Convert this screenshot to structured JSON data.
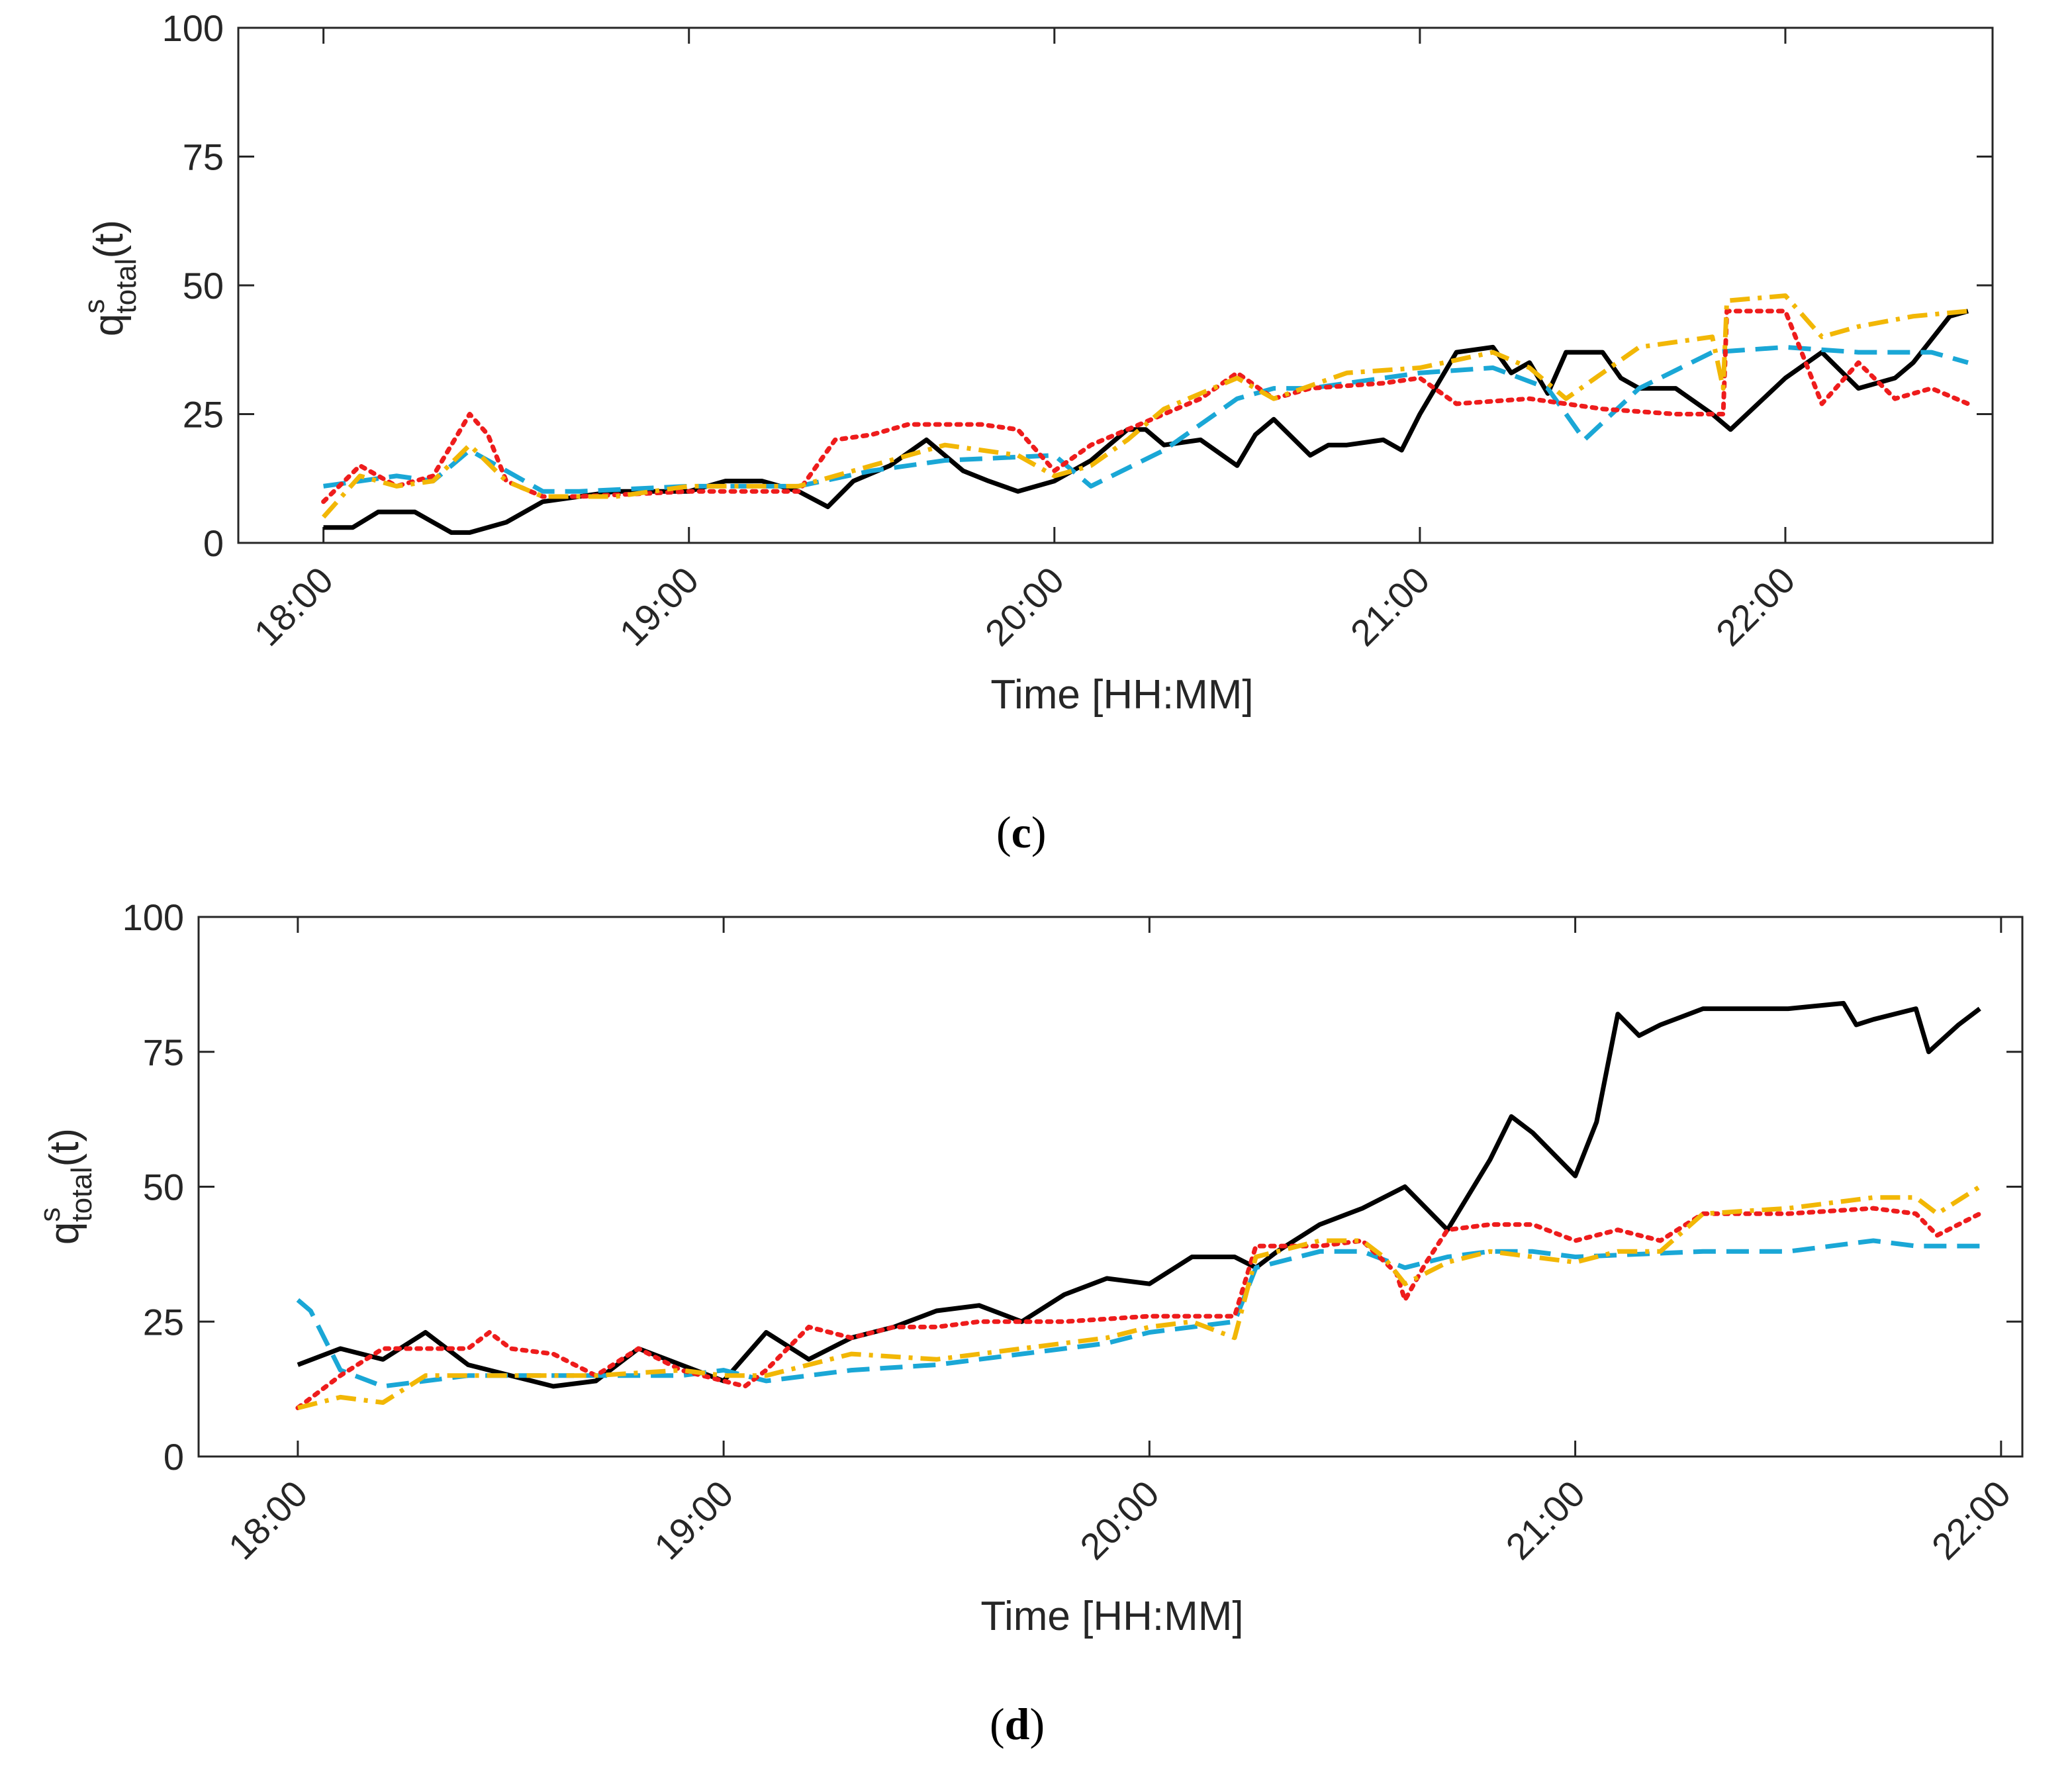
{
  "panels": [
    {
      "label_open": "(",
      "label_letter": "c",
      "label_close": ")"
    },
    {
      "label_open": "(",
      "label_letter": "d",
      "label_close": ")"
    }
  ],
  "colors": {
    "series_1": "#000000",
    "series_2": "#1aa7d6",
    "series_3": "#ee1c1c",
    "series_4": "#f2b705",
    "axis": "#262626"
  },
  "chart_data": [
    {
      "type": "line",
      "panel": "c",
      "xlabel": "Time [HH:MM]",
      "ylabel_base": "q",
      "ylabel_sup": "s",
      "ylabel_sub": "total",
      "ylabel_tail": "(t)",
      "ylim": [
        0,
        100
      ],
      "yticks": [
        0,
        25,
        50,
        75,
        100
      ],
      "xlim": [
        17.767,
        22.567
      ],
      "xticks": [
        18,
        19,
        20,
        21,
        22
      ],
      "xtick_labels": [
        "18:00",
        "19:00",
        "20:00",
        "21:00",
        "22:00"
      ],
      "grid": false,
      "series": [
        {
          "name": "solid black",
          "style": "solid",
          "color": "#000000",
          "x": [
            18.0,
            18.08,
            18.15,
            18.25,
            18.3,
            18.35,
            18.4,
            18.5,
            18.6,
            18.7,
            18.8,
            18.9,
            19.0,
            19.1,
            19.2,
            19.3,
            19.38,
            19.45,
            19.55,
            19.65,
            19.75,
            19.82,
            19.9,
            20.0,
            20.1,
            20.2,
            20.25,
            20.3,
            20.4,
            20.5,
            20.55,
            20.6,
            20.7,
            20.75,
            20.8,
            20.9,
            20.95,
            21.0,
            21.1,
            21.2,
            21.25,
            21.3,
            21.35,
            21.4,
            21.5,
            21.55,
            21.6,
            21.7,
            21.8,
            21.85,
            22.0,
            22.1,
            22.2,
            22.3,
            22.35,
            22.45,
            22.5
          ],
          "y": [
            3,
            3,
            6,
            6,
            4,
            2,
            2,
            4,
            8,
            9,
            10,
            10,
            10,
            12,
            12,
            10,
            7,
            12,
            15,
            20,
            14,
            12,
            10,
            12,
            16,
            22,
            22,
            19,
            20,
            15,
            21,
            24,
            17,
            19,
            19,
            20,
            18,
            25,
            37,
            38,
            33,
            35,
            29,
            37,
            37,
            32,
            30,
            30,
            25,
            22,
            32,
            37,
            30,
            32,
            35,
            44,
            45
          ]
        },
        {
          "name": "dashed cyan",
          "style": "dashed",
          "color": "#1aa7d6",
          "x": [
            18.0,
            18.1,
            18.2,
            18.3,
            18.4,
            18.5,
            18.6,
            18.7,
            19.0,
            19.3,
            19.5,
            19.7,
            20.0,
            20.1,
            20.3,
            20.5,
            20.6,
            20.7,
            20.9,
            21.0,
            21.2,
            21.35,
            21.45,
            21.6,
            21.8,
            22.0,
            22.2,
            22.4,
            22.5
          ],
          "y": [
            11,
            12,
            13,
            12,
            18,
            14,
            10,
            10,
            11,
            11,
            14,
            16,
            17,
            11,
            18,
            28,
            30,
            30,
            32,
            33,
            34,
            30,
            20,
            30,
            37,
            38,
            37,
            37,
            35
          ]
        },
        {
          "name": "dotted red",
          "style": "dotted",
          "color": "#ee1c1c",
          "x": [
            18.0,
            18.1,
            18.2,
            18.3,
            18.4,
            18.45,
            18.5,
            18.6,
            18.7,
            19.0,
            19.3,
            19.4,
            19.5,
            19.6,
            19.7,
            19.8,
            19.9,
            20.0,
            20.1,
            20.2,
            20.3,
            20.4,
            20.5,
            20.6,
            20.7,
            20.9,
            21.0,
            21.1,
            21.3,
            21.5,
            21.7,
            21.83,
            21.84,
            22.0,
            22.1,
            22.2,
            22.3,
            22.4,
            22.5
          ],
          "y": [
            8,
            15,
            11,
            13,
            25,
            21,
            12,
            9,
            9,
            10,
            10,
            20,
            21,
            23,
            23,
            23,
            22,
            14,
            19,
            22,
            25,
            28,
            33,
            28,
            30,
            31,
            32,
            27,
            28,
            26,
            25,
            25,
            45,
            45,
            27,
            35,
            28,
            30,
            27
          ]
        },
        {
          "name": "dash-dot yellow",
          "style": "dashdot",
          "color": "#f2b705",
          "x": [
            18.0,
            18.1,
            18.2,
            18.3,
            18.4,
            18.5,
            18.6,
            18.8,
            19.0,
            19.3,
            19.5,
            19.7,
            19.9,
            20.0,
            20.1,
            20.2,
            20.3,
            20.5,
            20.6,
            20.8,
            21.0,
            21.2,
            21.3,
            21.4,
            21.5,
            21.6,
            21.8,
            21.83,
            21.84,
            22.0,
            22.1,
            22.2,
            22.35,
            22.5
          ],
          "y": [
            5,
            13,
            11,
            12,
            19,
            12,
            9,
            9,
            11,
            11,
            15,
            19,
            17,
            13,
            15,
            20,
            26,
            32,
            28,
            33,
            34,
            37,
            34,
            28,
            33,
            38,
            40,
            30,
            47,
            48,
            40,
            42,
            44,
            45
          ]
        }
      ]
    },
    {
      "type": "line",
      "panel": "d",
      "xlabel": "Time [HH:MM]",
      "ylabel_base": "q",
      "ylabel_sup": "s",
      "ylabel_sub": "total",
      "ylabel_tail": "(t)",
      "ylim": [
        0,
        100
      ],
      "yticks": [
        0,
        25,
        50,
        75,
        100
      ],
      "xlim": [
        17.767,
        22.05
      ],
      "xticks": [
        18,
        19,
        20,
        21,
        22
      ],
      "xtick_labels": [
        "18:00",
        "19:00",
        "20:00",
        "21:00",
        "22:00"
      ],
      "grid": false,
      "series": [
        {
          "name": "solid black",
          "style": "solid",
          "color": "#000000",
          "x": [
            18.0,
            18.1,
            18.2,
            18.3,
            18.4,
            18.5,
            18.6,
            18.7,
            18.8,
            18.9,
            19.0,
            19.1,
            19.2,
            19.3,
            19.4,
            19.5,
            19.6,
            19.7,
            19.8,
            19.9,
            20.0,
            20.1,
            20.2,
            20.25,
            20.3,
            20.4,
            20.5,
            20.6,
            20.7,
            20.8,
            20.85,
            20.9,
            21.0,
            21.05,
            21.1,
            21.15,
            21.2,
            21.3,
            21.5,
            21.63,
            21.66,
            21.7,
            21.8,
            21.83,
            21.9,
            21.95
          ],
          "y": [
            17,
            20,
            18,
            23,
            17,
            15,
            13,
            14,
            20,
            17,
            14,
            23,
            18,
            22,
            24,
            27,
            28,
            25,
            30,
            33,
            32,
            37,
            37,
            35,
            38,
            43,
            46,
            50,
            42,
            55,
            63,
            60,
            52,
            62,
            82,
            78,
            80,
            83,
            83,
            84,
            80,
            81,
            83,
            75,
            80,
            83
          ]
        },
        {
          "name": "dashed cyan",
          "style": "dashed",
          "color": "#1aa7d6",
          "x": [
            18.0,
            18.03,
            18.1,
            18.2,
            18.4,
            18.6,
            18.9,
            19.0,
            19.1,
            19.3,
            19.5,
            19.7,
            19.9,
            20.0,
            20.1,
            20.2,
            20.25,
            20.4,
            20.5,
            20.6,
            20.7,
            20.8,
            20.9,
            21.0,
            21.3,
            21.5,
            21.7,
            21.8,
            21.95
          ],
          "y": [
            29,
            27,
            16,
            13,
            15,
            15,
            15,
            16,
            14,
            16,
            17,
            19,
            21,
            23,
            24,
            25,
            35,
            38,
            38,
            35,
            37,
            38,
            38,
            37,
            38,
            38,
            40,
            39,
            39
          ]
        },
        {
          "name": "dotted red",
          "style": "dotted",
          "color": "#ee1c1c",
          "x": [
            18.0,
            18.1,
            18.2,
            18.3,
            18.4,
            18.45,
            18.5,
            18.6,
            18.7,
            18.8,
            18.9,
            19.0,
            19.05,
            19.1,
            19.2,
            19.3,
            19.4,
            19.5,
            19.6,
            19.8,
            20.0,
            20.1,
            20.2,
            20.25,
            20.4,
            20.5,
            20.58,
            20.6,
            20.65,
            20.7,
            20.8,
            20.9,
            21.0,
            21.1,
            21.2,
            21.3,
            21.5,
            21.7,
            21.8,
            21.85,
            21.95
          ],
          "y": [
            9,
            15,
            20,
            20,
            20,
            23,
            20,
            19,
            15,
            20,
            16,
            14,
            13,
            16,
            24,
            22,
            24,
            24,
            25,
            25,
            26,
            26,
            26,
            39,
            39,
            40,
            34,
            29,
            36,
            42,
            43,
            43,
            40,
            42,
            40,
            45,
            45,
            46,
            45,
            41,
            45
          ]
        },
        {
          "name": "dash-dot yellow",
          "style": "dashdot",
          "color": "#f2b705",
          "x": [
            18.0,
            18.1,
            18.2,
            18.3,
            18.5,
            18.7,
            18.9,
            19.0,
            19.1,
            19.3,
            19.5,
            19.7,
            19.9,
            20.0,
            20.1,
            20.2,
            20.25,
            20.4,
            20.5,
            20.55,
            20.6,
            20.7,
            20.8,
            20.9,
            21.0,
            21.1,
            21.2,
            21.3,
            21.5,
            21.7,
            21.8,
            21.85,
            21.95
          ],
          "y": [
            9,
            11,
            10,
            15,
            15,
            15,
            16,
            15,
            15,
            19,
            18,
            20,
            22,
            24,
            25,
            22,
            37,
            40,
            40,
            37,
            32,
            36,
            38,
            37,
            36,
            38,
            38,
            45,
            46,
            48,
            48,
            45,
            50
          ]
        }
      ]
    }
  ]
}
